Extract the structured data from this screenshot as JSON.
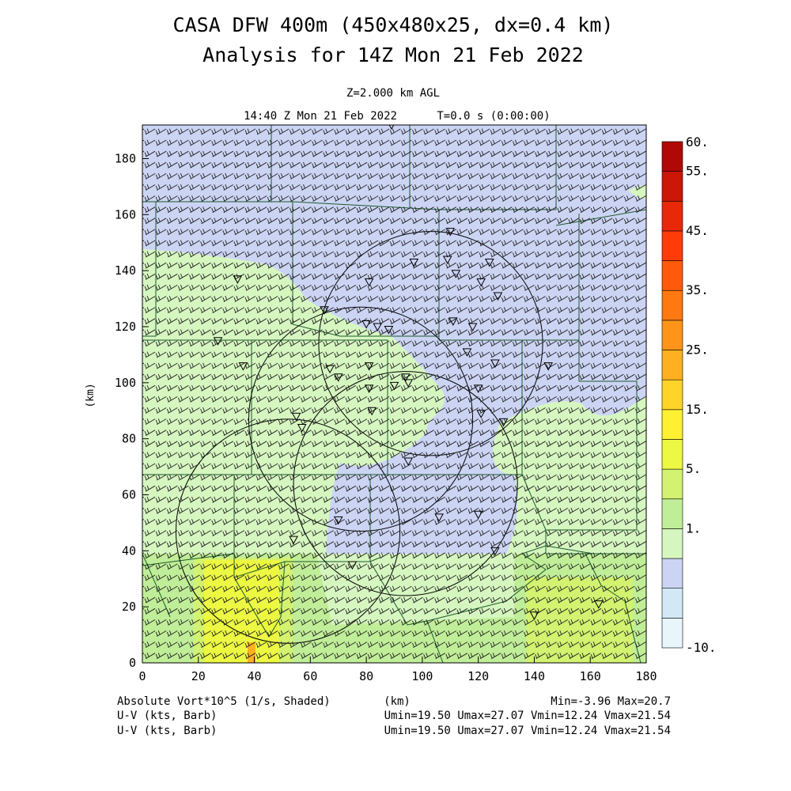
{
  "header": {
    "title_line1": "CASA DFW 400m (450x480x25, dx=0.4 km)",
    "title_line2": "Analysis for 14Z Mon 21 Feb 2022",
    "level": "Z=2.000 km AGL",
    "valid_time": "14:40 Z Mon 21 Feb 2022",
    "time_offset": "T=0.0 s (0:00:00)"
  },
  "footer": {
    "field_label": "Absolute Vort*10^5 (1/s, Shaded)",
    "xunit": "(km)",
    "minmax": "Min=-3.96 Max=20.7",
    "vector1_label": "U-V (kts, Barb)",
    "vector1_stats": "Umin=19.50 Umax=27.07 Vmin=12.24 Vmax=21.54",
    "vector2_label": "U-V (kts, Barb)",
    "vector2_stats": "Umin=19.50 Umax=27.07 Vmin=12.24 Vmax=21.54"
  },
  "chart_data": {
    "type": "heatmap",
    "title": "CASA DFW 400m (450x480x25, dx=0.4 km)",
    "subtitle": "Analysis for 14Z Mon 21 Feb 2022",
    "xlabel": "(km)",
    "ylabel": "(km)",
    "xlim": [
      0,
      180
    ],
    "ylim": [
      0,
      192
    ],
    "xticks": [
      0,
      20,
      40,
      60,
      80,
      100,
      120,
      140,
      160,
      180
    ],
    "yticks": [
      0,
      20,
      40,
      60,
      80,
      100,
      120,
      140,
      160,
      180
    ],
    "colorbar": {
      "labels": [
        "60.",
        "55.",
        "45.",
        "35.",
        "25.",
        "15.",
        "5.",
        "1.",
        "-10."
      ],
      "bins": [
        "#e8f6fc",
        "#d2e8f6",
        "#ccd4f4",
        "#d6f6c0",
        "#c0ee98",
        "#d2f270",
        "#ecf842",
        "#fff032",
        "#ffd428",
        "#ffb020",
        "#ff9418",
        "#ff7810",
        "#ff5a0c",
        "#ff3c08",
        "#e82808",
        "#cc1608",
        "#b00806"
      ]
    },
    "field_name": "Absolute Vort*10^5 (1/s, Shaded)",
    "min": -3.96,
    "max": 20.7,
    "wind_barbs": {
      "units": "kts",
      "umin": 19.5,
      "umax": 27.07,
      "vmin": 12.24,
      "vmax": 21.54
    },
    "radar_rings": [
      {
        "cx_km": 103,
        "cy_km": 114,
        "r_km": 40
      },
      {
        "cx_km": 78,
        "cy_km": 87,
        "r_km": 40
      },
      {
        "cx_km": 94,
        "cy_km": 64,
        "r_km": 40
      },
      {
        "cx_km": 52,
        "cy_km": 47,
        "r_km": 40
      }
    ],
    "stations_km": [
      [
        110,
        154
      ],
      [
        97,
        143
      ],
      [
        109,
        144
      ],
      [
        124,
        143
      ],
      [
        112,
        139
      ],
      [
        121,
        136
      ],
      [
        81,
        136
      ],
      [
        127,
        131
      ],
      [
        34,
        137
      ],
      [
        65,
        126
      ],
      [
        80,
        121
      ],
      [
        84,
        120
      ],
      [
        88,
        119
      ],
      [
        111,
        122
      ],
      [
        118,
        120
      ],
      [
        27,
        115
      ],
      [
        116,
        111
      ],
      [
        126,
        107
      ],
      [
        145,
        106
      ],
      [
        36,
        106
      ],
      [
        67,
        105
      ],
      [
        81,
        106
      ],
      [
        70,
        102
      ],
      [
        94,
        102
      ],
      [
        81,
        98
      ],
      [
        90,
        99
      ],
      [
        95,
        100
      ],
      [
        120,
        98
      ],
      [
        82,
        90
      ],
      [
        121,
        89
      ],
      [
        55,
        88
      ],
      [
        57,
        84
      ],
      [
        129,
        86
      ],
      [
        95,
        72
      ],
      [
        70,
        51
      ],
      [
        106,
        52
      ],
      [
        120,
        53
      ],
      [
        54,
        44
      ],
      [
        75,
        35
      ],
      [
        126,
        40
      ],
      [
        140,
        17
      ],
      [
        163,
        21
      ],
      [
        89,
        192
      ]
    ]
  }
}
